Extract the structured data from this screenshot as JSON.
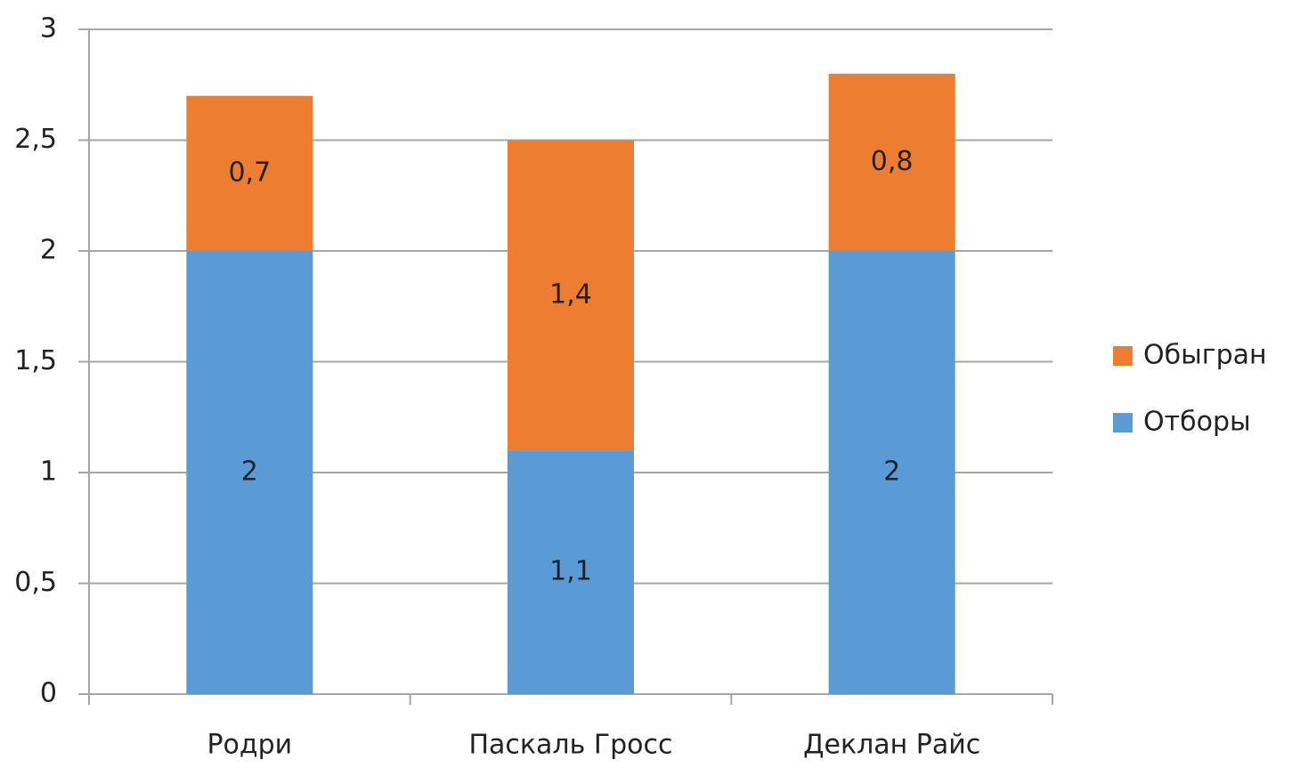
{
  "chart_data": {
    "type": "stacked-bar",
    "categories": [
      "Родри",
      "Паскаль Гросс",
      "Деклан Райс"
    ],
    "series": [
      {
        "name": "Отборы",
        "color": "#5b9bd5",
        "values": [
          2,
          1.1,
          2
        ],
        "value_labels": [
          "2",
          "1,1",
          "2"
        ]
      },
      {
        "name": "Обыгран",
        "color": "#ed7d31",
        "values": [
          0.7,
          1.4,
          0.8
        ],
        "value_labels": [
          "0,7",
          "1,4",
          "0,8"
        ]
      }
    ],
    "ylim": [
      0,
      3
    ],
    "yticks": [
      0,
      {
        "value": 0.5,
        "label": "0,5"
      },
      1,
      {
        "value": 1.5,
        "label": "1,5"
      },
      2,
      {
        "value": 2.5,
        "label": "2,5"
      },
      3
    ],
    "grid": true,
    "legend": "right"
  }
}
